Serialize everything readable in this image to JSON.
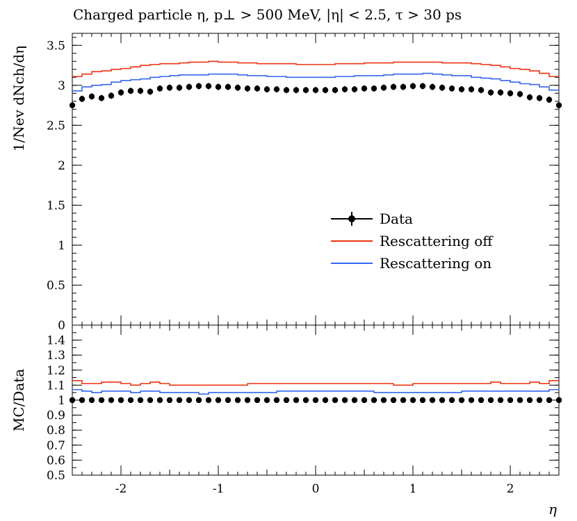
{
  "chart_data": [
    {
      "type": "line",
      "panel": "main",
      "title": "Charged particle η, p⊥ > 500 MeV, |η| < 2.5, τ > 30 ps",
      "ylabel": "1/Nev dNch/dη",
      "xlim": [
        -2.5,
        2.5
      ],
      "ylim": [
        0,
        3.65
      ],
      "y_ticks": [
        "0",
        "0.5",
        "1",
        "1.5",
        "2",
        "2.5",
        "3",
        "3.5"
      ],
      "grid": false,
      "legend_position": "center-right",
      "x_edges": [
        -2.5,
        -2.4,
        -2.3,
        -2.2,
        -2.1,
        -2.0,
        -1.9,
        -1.8,
        -1.7,
        -1.6,
        -1.5,
        -1.4,
        -1.3,
        -1.2,
        -1.1,
        -1.0,
        -0.9,
        -0.8,
        -0.7,
        -0.6,
        -0.5,
        -0.4,
        -0.3,
        -0.2,
        -0.1,
        0.0,
        0.1,
        0.2,
        0.3,
        0.4,
        0.5,
        0.6,
        0.7,
        0.8,
        0.9,
        1.0,
        1.1,
        1.2,
        1.3,
        1.4,
        1.5,
        1.6,
        1.7,
        1.8,
        1.9,
        2.0,
        2.1,
        2.2,
        2.3,
        2.4,
        2.5
      ],
      "series": [
        {
          "name": "Data",
          "color": "#000000",
          "style": "points",
          "values": [
            2.75,
            2.83,
            2.86,
            2.84,
            2.87,
            2.91,
            2.93,
            2.93,
            2.92,
            2.96,
            2.97,
            2.97,
            2.98,
            2.99,
            2.99,
            2.98,
            2.98,
            2.97,
            2.96,
            2.96,
            2.95,
            2.95,
            2.94,
            2.94,
            2.94,
            2.94,
            2.94,
            2.94,
            2.95,
            2.95,
            2.96,
            2.96,
            2.97,
            2.98,
            2.98,
            2.99,
            2.99,
            2.98,
            2.97,
            2.96,
            2.95,
            2.95,
            2.94,
            2.91,
            2.91,
            2.9,
            2.89,
            2.85,
            2.84,
            2.82,
            2.75
          ],
          "errors": [
            0.04,
            0.04,
            0.04,
            0.04,
            0.04,
            0.04,
            0.04,
            0.04,
            0.04,
            0.04,
            0.04,
            0.04,
            0.04,
            0.04,
            0.04,
            0.04,
            0.04,
            0.04,
            0.04,
            0.04,
            0.04,
            0.04,
            0.04,
            0.04,
            0.04,
            0.04,
            0.04,
            0.04,
            0.04,
            0.04,
            0.04,
            0.04,
            0.04,
            0.04,
            0.04,
            0.04,
            0.04,
            0.04,
            0.04,
            0.04,
            0.04,
            0.04,
            0.04,
            0.04,
            0.04,
            0.04,
            0.04,
            0.04,
            0.04,
            0.04,
            0.04
          ]
        },
        {
          "name": "Rescattering off",
          "color": "#ee3311",
          "style": "step",
          "values": [
            3.11,
            3.14,
            3.17,
            3.18,
            3.2,
            3.21,
            3.23,
            3.25,
            3.26,
            3.27,
            3.27,
            3.28,
            3.29,
            3.29,
            3.3,
            3.29,
            3.29,
            3.28,
            3.28,
            3.27,
            3.27,
            3.27,
            3.27,
            3.26,
            3.26,
            3.26,
            3.26,
            3.27,
            3.27,
            3.27,
            3.28,
            3.28,
            3.28,
            3.29,
            3.29,
            3.29,
            3.29,
            3.29,
            3.28,
            3.28,
            3.28,
            3.27,
            3.26,
            3.25,
            3.23,
            3.21,
            3.2,
            3.18,
            3.15,
            3.11
          ]
        },
        {
          "name": "Rescattering on",
          "color": "#3366ee",
          "style": "step",
          "values": [
            2.93,
            2.98,
            3.0,
            3.01,
            3.04,
            3.06,
            3.07,
            3.08,
            3.1,
            3.11,
            3.12,
            3.13,
            3.13,
            3.13,
            3.14,
            3.14,
            3.14,
            3.13,
            3.12,
            3.12,
            3.11,
            3.11,
            3.1,
            3.1,
            3.1,
            3.1,
            3.1,
            3.11,
            3.11,
            3.12,
            3.12,
            3.12,
            3.13,
            3.14,
            3.14,
            3.14,
            3.15,
            3.14,
            3.13,
            3.12,
            3.12,
            3.1,
            3.09,
            3.08,
            3.06,
            3.04,
            3.02,
            3.01,
            2.98,
            2.94
          ]
        }
      ]
    },
    {
      "type": "line",
      "panel": "ratio",
      "xlabel": "η",
      "ylabel": "MC/Data",
      "xlim": [
        -2.5,
        2.5
      ],
      "ylim": [
        0.5,
        1.5
      ],
      "y_ticks": [
        "0.5",
        "0.6",
        "0.7",
        "0.8",
        "0.9",
        "1",
        "1.1",
        "1.2",
        "1.3",
        "1.4"
      ],
      "x_ticks": [
        "-2",
        "-1",
        "0",
        "1",
        "2"
      ],
      "series": [
        {
          "name": "Data",
          "color": "#000000",
          "style": "points",
          "values": [
            1,
            1,
            1,
            1,
            1,
            1,
            1,
            1,
            1,
            1,
            1,
            1,
            1,
            1,
            1,
            1,
            1,
            1,
            1,
            1,
            1,
            1,
            1,
            1,
            1,
            1,
            1,
            1,
            1,
            1,
            1,
            1,
            1,
            1,
            1,
            1,
            1,
            1,
            1,
            1,
            1,
            1,
            1,
            1,
            1,
            1,
            1,
            1,
            1,
            1,
            1
          ]
        },
        {
          "name": "Rescattering off",
          "color": "#ee3311",
          "style": "step",
          "values": [
            1.13,
            1.11,
            1.11,
            1.12,
            1.12,
            1.11,
            1.1,
            1.11,
            1.12,
            1.11,
            1.1,
            1.1,
            1.1,
            1.1,
            1.1,
            1.1,
            1.1,
            1.1,
            1.11,
            1.11,
            1.11,
            1.11,
            1.11,
            1.11,
            1.11,
            1.11,
            1.11,
            1.11,
            1.11,
            1.11,
            1.11,
            1.11,
            1.11,
            1.1,
            1.1,
            1.11,
            1.11,
            1.11,
            1.11,
            1.11,
            1.11,
            1.11,
            1.11,
            1.12,
            1.11,
            1.11,
            1.11,
            1.12,
            1.11,
            1.13
          ]
        },
        {
          "name": "Rescattering on",
          "color": "#3366ee",
          "style": "step",
          "values": [
            1.07,
            1.06,
            1.05,
            1.06,
            1.06,
            1.06,
            1.05,
            1.06,
            1.06,
            1.05,
            1.05,
            1.05,
            1.05,
            1.04,
            1.05,
            1.05,
            1.05,
            1.05,
            1.05,
            1.05,
            1.05,
            1.06,
            1.06,
            1.06,
            1.06,
            1.06,
            1.06,
            1.06,
            1.06,
            1.06,
            1.06,
            1.05,
            1.05,
            1.05,
            1.05,
            1.05,
            1.05,
            1.05,
            1.05,
            1.05,
            1.06,
            1.06,
            1.06,
            1.06,
            1.06,
            1.06,
            1.06,
            1.06,
            1.06,
            1.07
          ]
        }
      ]
    }
  ]
}
